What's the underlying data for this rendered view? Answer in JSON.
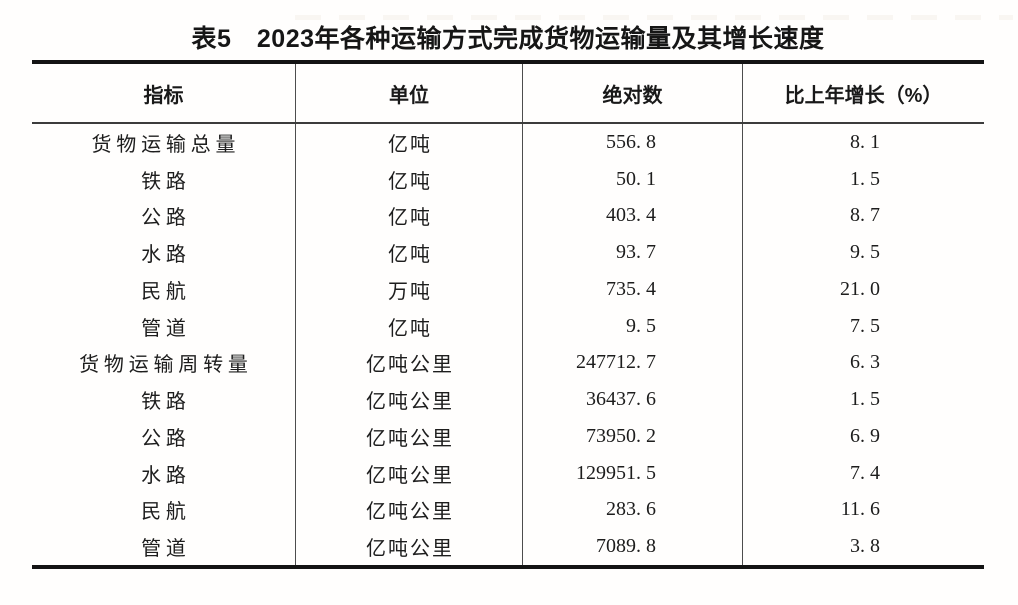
{
  "title": "表5　2023年各种运输方式完成货物运输量及其增长速度",
  "table": {
    "columns": [
      "指标",
      "单位",
      "绝对数",
      "比上年增长（%）"
    ],
    "rows": [
      {
        "indicator": "货物运输总量",
        "unit": "亿吨",
        "absolute": "556.8",
        "growth": "8.1",
        "absolute_display": "556. 8",
        "growth_display": "8. 1"
      },
      {
        "indicator": "铁路",
        "unit": "亿吨",
        "absolute": "50.1",
        "growth": "1.5",
        "absolute_display": "50. 1",
        "growth_display": "1. 5"
      },
      {
        "indicator": "公路",
        "unit": "亿吨",
        "absolute": "403.4",
        "growth": "8.7",
        "absolute_display": "403. 4",
        "growth_display": "8. 7"
      },
      {
        "indicator": "水路",
        "unit": "亿吨",
        "absolute": "93.7",
        "growth": "9.5",
        "absolute_display": "93. 7",
        "growth_display": "9. 5"
      },
      {
        "indicator": "民航",
        "unit": "万吨",
        "absolute": "735.4",
        "growth": "21.0",
        "absolute_display": "735. 4",
        "growth_display": "21. 0"
      },
      {
        "indicator": "管道",
        "unit": "亿吨",
        "absolute": "9.5",
        "growth": "7.5",
        "absolute_display": "9. 5",
        "growth_display": "7. 5"
      },
      {
        "indicator": "货物运输周转量",
        "unit": "亿吨公里",
        "absolute": "247712.7",
        "growth": "6.3",
        "absolute_display": "247712. 7",
        "growth_display": "6. 3"
      },
      {
        "indicator": "铁路",
        "unit": "亿吨公里",
        "absolute": "36437.6",
        "growth": "1.5",
        "absolute_display": "36437. 6",
        "growth_display": "1. 5"
      },
      {
        "indicator": "公路",
        "unit": "亿吨公里",
        "absolute": "73950.2",
        "growth": "6.9",
        "absolute_display": "73950. 2",
        "growth_display": "6. 9"
      },
      {
        "indicator": "水路",
        "unit": "亿吨公里",
        "absolute": "129951.5",
        "growth": "7.4",
        "absolute_display": "129951. 5",
        "growth_display": "7. 4"
      },
      {
        "indicator": "民航",
        "unit": "亿吨公里",
        "absolute": "283.6",
        "growth": "11.6",
        "absolute_display": "283. 6",
        "growth_display": "11. 6"
      },
      {
        "indicator": "管道",
        "unit": "亿吨公里",
        "absolute": "7089.8",
        "growth": "3.8",
        "absolute_display": "7089. 8",
        "growth_display": "3. 8"
      }
    ]
  }
}
